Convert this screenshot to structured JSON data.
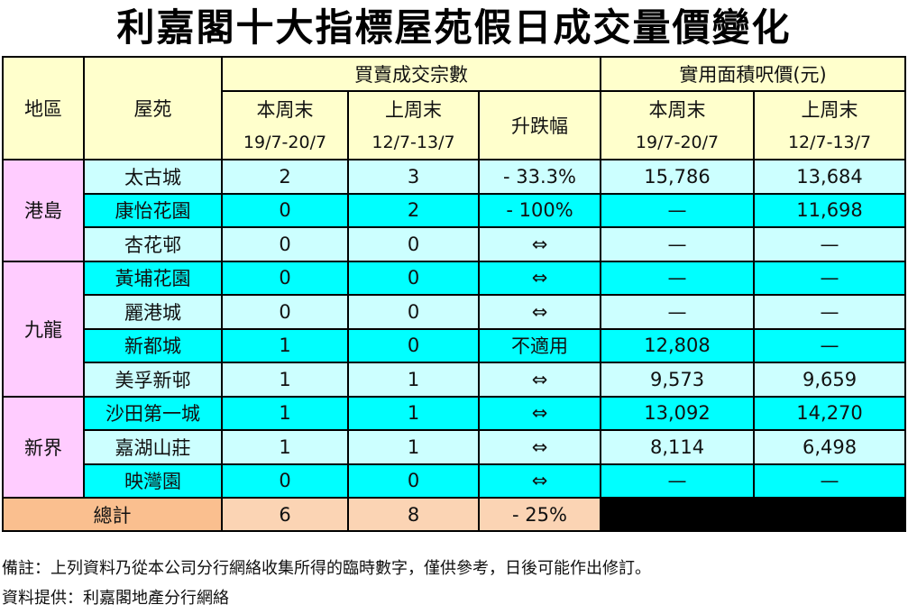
{
  "title": "利嘉閣十大指標屋苑假日成交量價變化",
  "header": {
    "region": "地區",
    "estate": "屋苑",
    "transactions": "買賣成交宗數",
    "price": "實用面積呎價(元)",
    "this_week": "本周末",
    "last_week": "上周末",
    "change": "升跌幅",
    "this_dates": "19/7-20/7",
    "last_dates": "12/7-13/7"
  },
  "regions": [
    "港島",
    "九龍",
    "新界"
  ],
  "rows": [
    {
      "estate": "太古城",
      "this": "2",
      "last": "3",
      "change": "- 33.3%",
      "price_this": "15,786",
      "price_last": "13,684"
    },
    {
      "estate": "康怡花園",
      "this": "0",
      "last": "2",
      "change": "- 100%",
      "price_this": "—",
      "price_last": "11,698"
    },
    {
      "estate": "杏花邨",
      "this": "0",
      "last": "0",
      "change": "⇔",
      "price_this": "—",
      "price_last": "—"
    },
    {
      "estate": "黃埔花園",
      "this": "0",
      "last": "0",
      "change": "⇔",
      "price_this": "—",
      "price_last": "—"
    },
    {
      "estate": "麗港城",
      "this": "0",
      "last": "0",
      "change": "⇔",
      "price_this": "—",
      "price_last": "—"
    },
    {
      "estate": "新都城",
      "this": "1",
      "last": "0",
      "change": "不適用",
      "price_this": "12,808",
      "price_last": "—"
    },
    {
      "estate": "美孚新邨",
      "this": "1",
      "last": "1",
      "change": "⇔",
      "price_this": "9,573",
      "price_last": "9,659"
    },
    {
      "estate": "沙田第一城",
      "this": "1",
      "last": "1",
      "change": "⇔",
      "price_this": "13,092",
      "price_last": "14,270"
    },
    {
      "estate": "嘉湖山莊",
      "this": "1",
      "last": "1",
      "change": "⇔",
      "price_this": "8,114",
      "price_last": "6,498"
    },
    {
      "estate": "映灣園",
      "this": "0",
      "last": "0",
      "change": "⇔",
      "price_this": "—",
      "price_last": "—"
    }
  ],
  "total": {
    "label": "總計",
    "this": "6",
    "last": "8",
    "change": "- 25%"
  },
  "notes": {
    "remark": "備註：上列資料乃從本公司分行網絡收集所得的臨時數字，僅供參考，日後可能作出修訂。",
    "source": "資料提供：利嘉閣地產分行網絡"
  },
  "colors": {
    "header": "#FFFFCC",
    "region": "#FFCCFF",
    "row_light": "#CCFFFF",
    "row_cyan": "#00FFFF",
    "total_label": "#FABF8F",
    "total": "#FBD4B4"
  }
}
